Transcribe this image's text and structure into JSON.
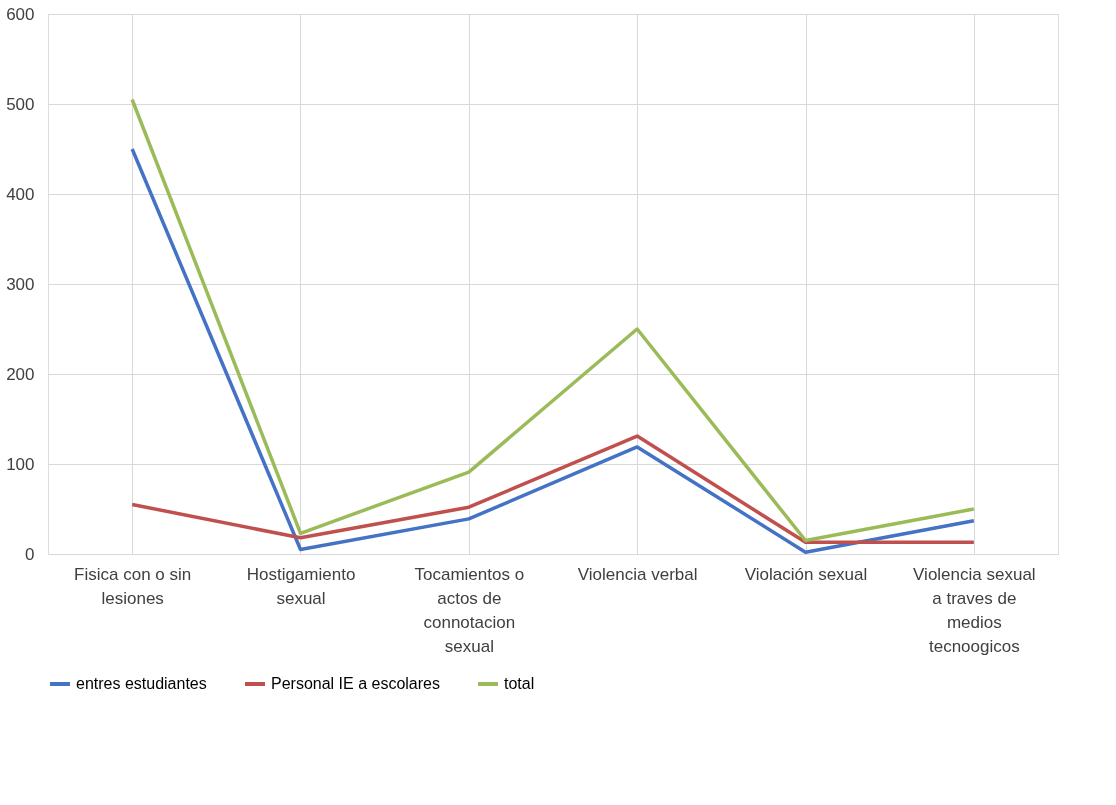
{
  "chart_data": {
    "type": "line",
    "categories": [
      "Fisica con o sin lesiones",
      "Hostigamiento sexual",
      "Tocamientos o actos de connotacion sexual",
      "Violencia verbal",
      "Violación sexual",
      "Violencia sexual a traves de medios tecnoogicos"
    ],
    "series": [
      {
        "name": "entres estudiantes",
        "color": "#4472c4",
        "values": [
          450,
          5,
          39,
          119,
          2,
          37
        ]
      },
      {
        "name": "Personal IE a escolares",
        "color": "#c0504d",
        "values": [
          55,
          18,
          52,
          131,
          13,
          13
        ]
      },
      {
        "name": "total",
        "color": "#9bbb59",
        "values": [
          505,
          23,
          91,
          250,
          15,
          50
        ]
      }
    ],
    "ylim": [
      0,
      600
    ],
    "yticks": [
      0,
      100,
      200,
      300,
      400,
      500,
      600
    ],
    "grid": true,
    "legend": "bottom",
    "marker": "none",
    "line_style": "solid"
  }
}
